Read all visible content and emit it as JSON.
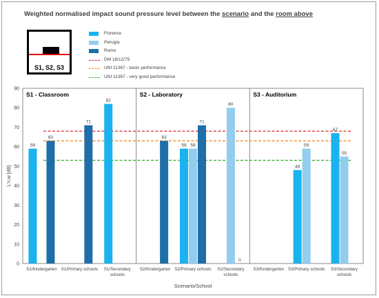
{
  "title": {
    "pre": "Weighted normalised impact sound pressure level between the ",
    "u1": "scenario",
    "mid": " and the ",
    "u2": "room above"
  },
  "key_label": "S1, S2, S3",
  "legend": [
    {
      "name": "Florence",
      "kind": "bar",
      "color": "#1ab2ef"
    },
    {
      "name": "Perugia",
      "kind": "bar",
      "color": "#92cdee"
    },
    {
      "name": "Rome",
      "kind": "bar",
      "color": "#1f6ea8"
    },
    {
      "name": "DM 18/12/75",
      "kind": "dash",
      "color": "#e02020"
    },
    {
      "name": "UNI 11367 - basic performance",
      "kind": "dash",
      "color": "#f08a1e"
    },
    {
      "name": "UNI 11367 -  very good performance",
      "kind": "dash",
      "color": "#3cb031"
    }
  ],
  "chart_data": {
    "type": "bar",
    "ylabel": "L'n,w [dB]",
    "xlabel": "Scenario/School",
    "ylim": [
      0,
      90
    ],
    "ytick_step": 10,
    "panels": [
      "S1 - Classroom",
      "S2 - Laboratory",
      "S3 - Auditorium"
    ],
    "categories": [
      [
        "S1/Kindergarten"
      ],
      [
        "S1/Primary schools"
      ],
      [
        "S1/Secondary",
        "schools"
      ],
      [
        "S2/Kindergarten"
      ],
      [
        "S2/Primary schools"
      ],
      [
        "S2/Secondary",
        "schools"
      ],
      [
        "S3/Kindergarten"
      ],
      [
        "S3/Primary schools"
      ],
      [
        "S3/Secondary",
        "schools"
      ]
    ],
    "series": [
      {
        "name": "Florence",
        "color": "#1ab2ef",
        "values": [
          59,
          null,
          82,
          null,
          59,
          null,
          null,
          48,
          67
        ]
      },
      {
        "name": "Perugia",
        "color": "#92cdee",
        "values": [
          null,
          null,
          null,
          null,
          59,
          80,
          null,
          59,
          55
        ]
      },
      {
        "name": "Rome",
        "color": "#1f6ea8",
        "values": [
          63,
          71,
          null,
          63,
          71,
          0,
          null,
          null,
          null
        ]
      }
    ],
    "reference_lines": [
      {
        "name": "DM 18/12/75",
        "value": 68,
        "color": "#e02020"
      },
      {
        "name": "UNI 11367 - basic performance",
        "value": 63,
        "color": "#f08a1e"
      },
      {
        "name": "UNI 11367 -  very good performance",
        "value": 53,
        "color": "#3cb031"
      }
    ]
  }
}
